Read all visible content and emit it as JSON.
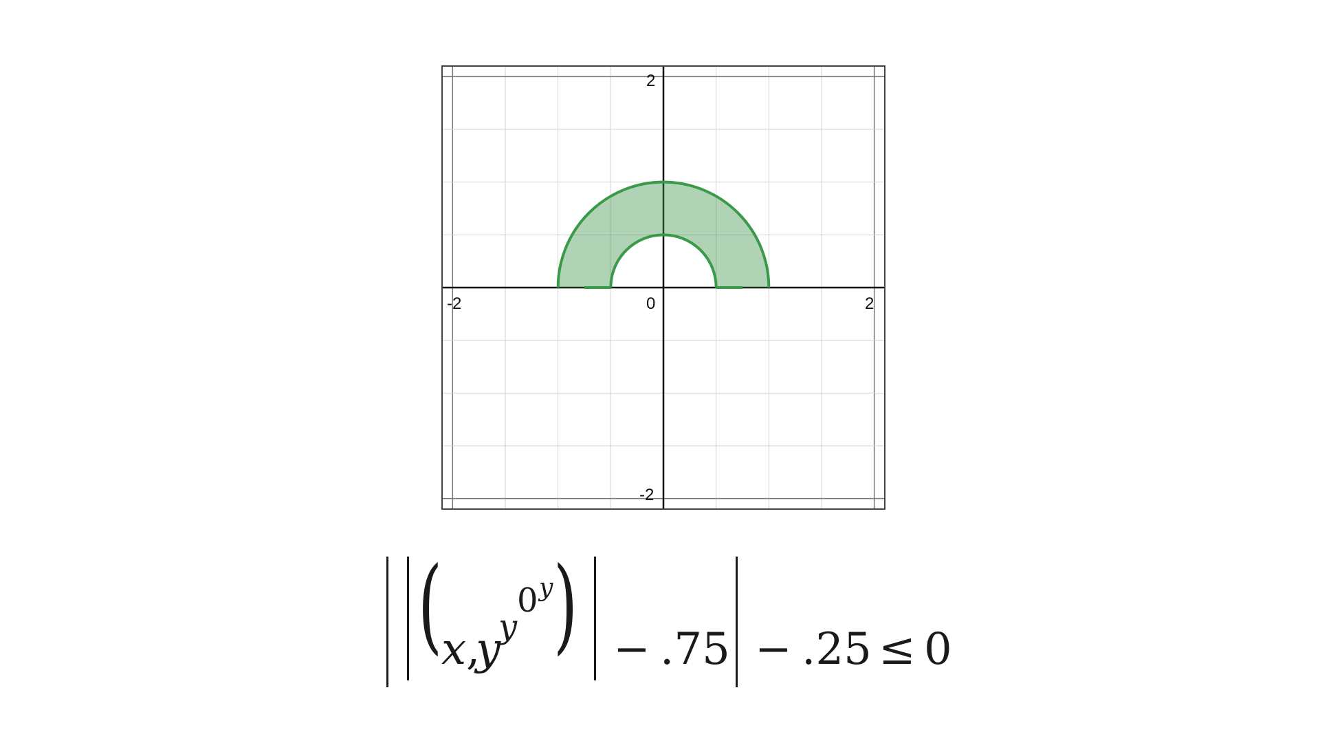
{
  "graph": {
    "x_range": [
      -2.1,
      2.1
    ],
    "y_range": [
      -2.1,
      2.1
    ],
    "tick_labels": {
      "x_neg": "-2",
      "x_pos": "2",
      "origin": "0",
      "y_pos": "2",
      "y_neg": "-2"
    },
    "grid_step": 0.5,
    "region": {
      "description_shape": "upper half annulus",
      "inner_radius": 0.5,
      "outer_radius": 1.0,
      "fill_color": "#3a8f47",
      "stroke_color": "#3a9a4a",
      "fill_opacity": 0.4
    }
  },
  "formula": {
    "x_var": "x",
    "comma": ",",
    "y_var": "y",
    "exp_y1": "y",
    "exp_zero": "0",
    "exp_y2": "y",
    "minus1": "−",
    "const1": ".75",
    "minus2": "−",
    "const2": ".25",
    "leq": "≤",
    "rhs": "0"
  }
}
